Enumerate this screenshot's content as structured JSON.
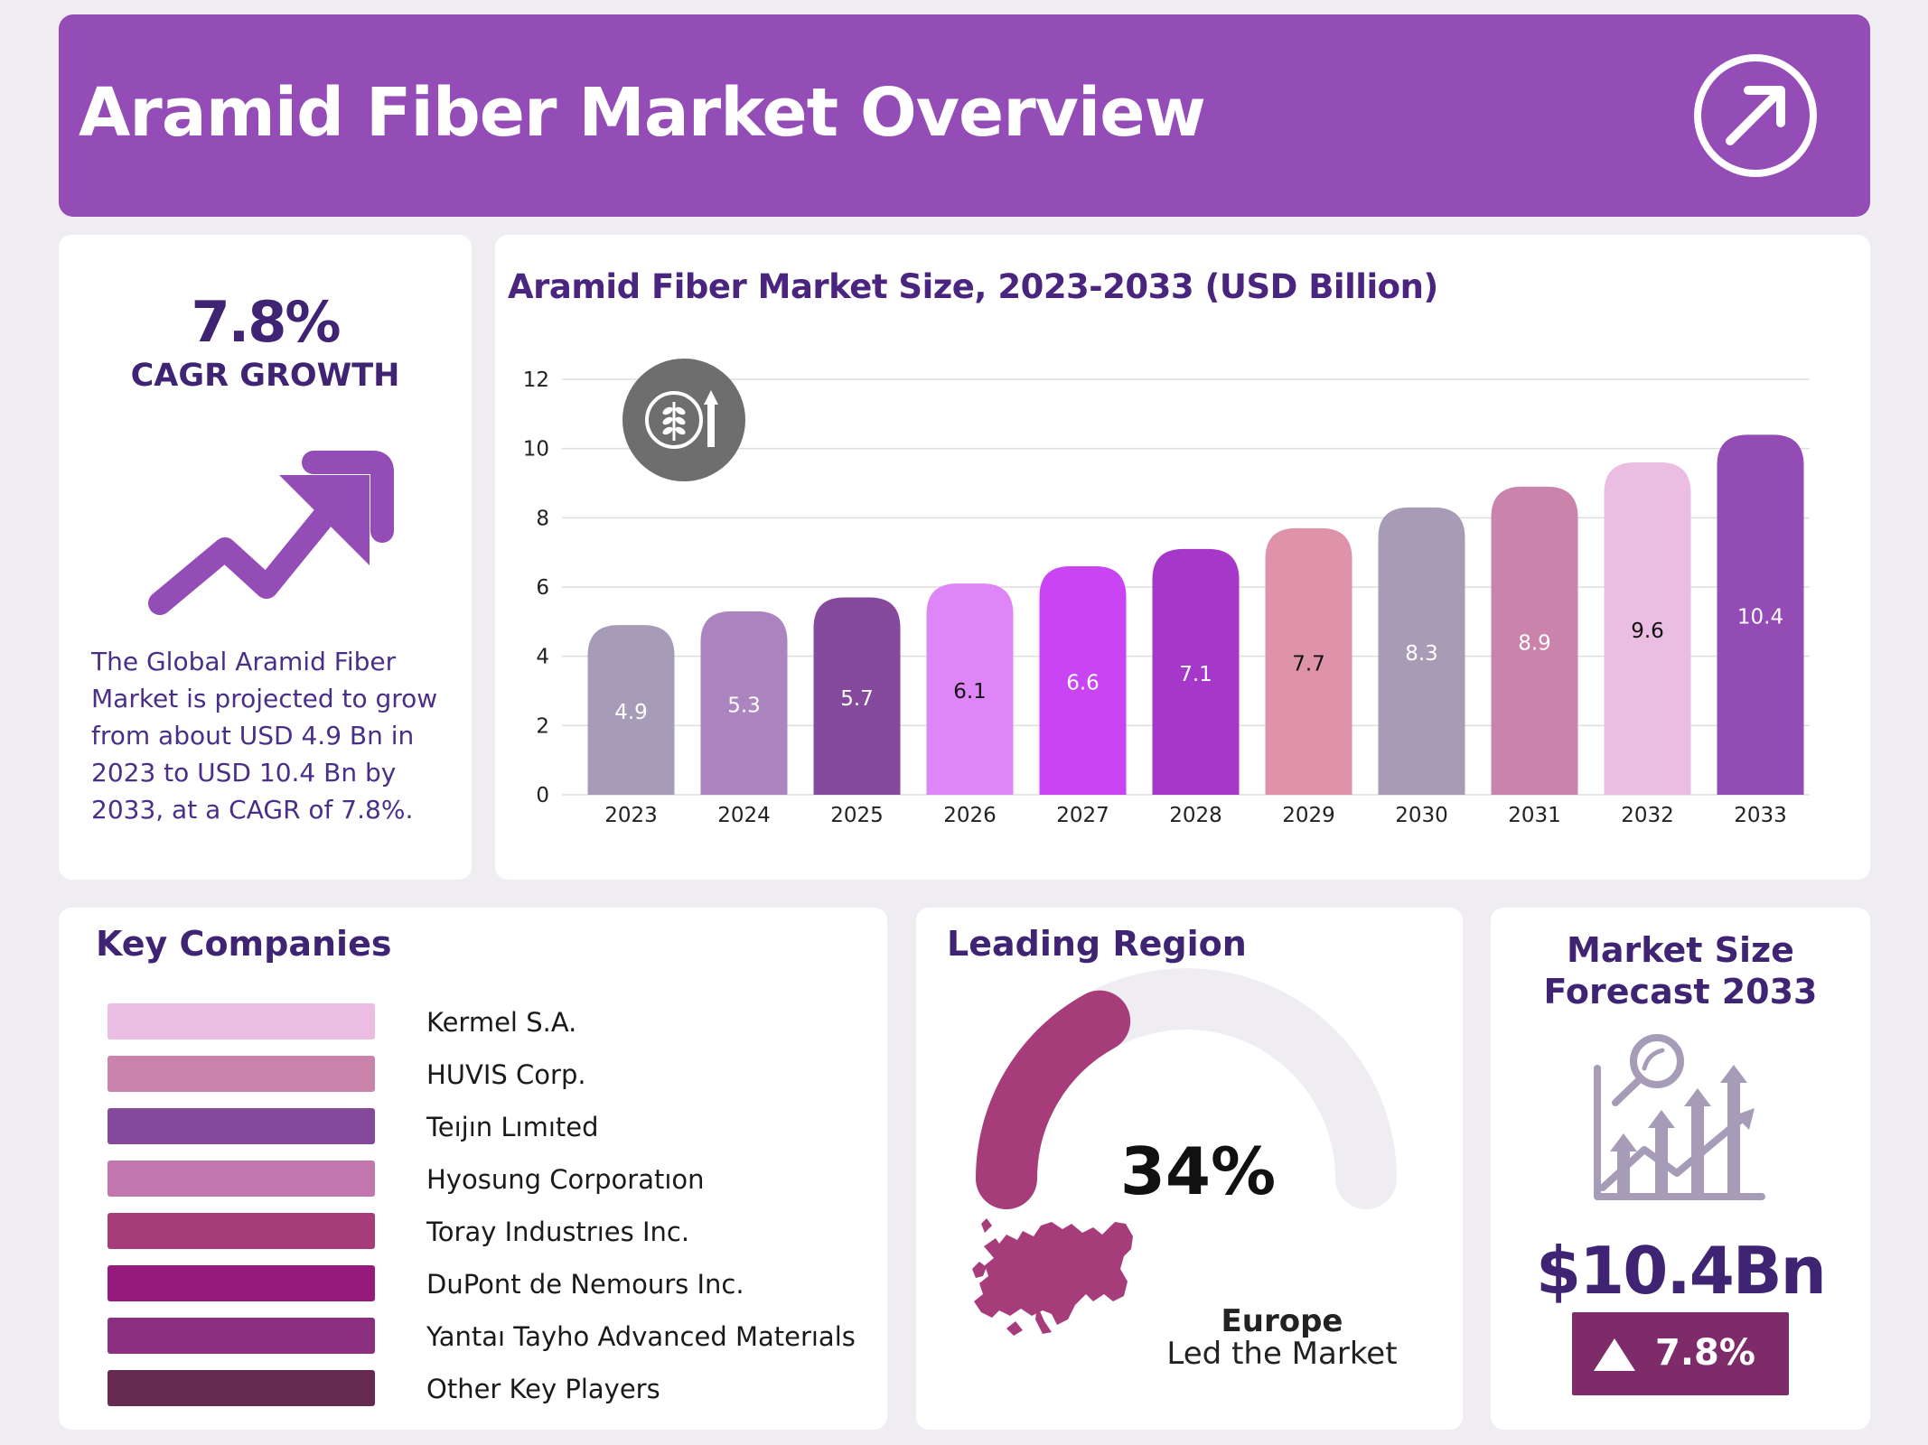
{
  "header": {
    "title": "Aramid Fiber Market Overview",
    "icon": "arrow-up-right-icon",
    "color": "#944cb7"
  },
  "cagr": {
    "value": "7.8%",
    "label": "CAGR GROWTH",
    "icon": "trend-up-arrow-icon",
    "description": "The Global Aramid Fiber Market is projected to grow from about USD 4.9 Bn in 2023 to USD 10.4 Bn by 2033, at a CAGR of 7.8%."
  },
  "chart_data": {
    "type": "bar",
    "title": "Aramid Fiber Market Size, 2023-2033 (USD Billion)",
    "xlabel": "",
    "ylabel": "",
    "categories": [
      "2023",
      "2024",
      "2025",
      "2026",
      "2027",
      "2028",
      "2029",
      "2030",
      "2031",
      "2032",
      "2033"
    ],
    "values": [
      4.9,
      5.3,
      5.7,
      6.1,
      6.6,
      7.1,
      7.7,
      8.3,
      8.9,
      9.6,
      10.4
    ],
    "value_labels": [
      "4.9",
      "5.3",
      "5.7",
      "6.1",
      "6.6",
      "7.1",
      "7.7",
      "8.3",
      "8.9",
      "9.6",
      "10.4"
    ],
    "colors": [
      "#a69cb8",
      "#ac84c0",
      "#854a9c",
      "#de86f7",
      "#c944f2",
      "#a638c9",
      "#df93aa",
      "#a79bb6",
      "#ca83ab",
      "#ebbde3",
      "#934bb6"
    ],
    "label_colors": [
      "#ffffff",
      "#ffffff",
      "#ffffff",
      "#111111",
      "#ffffff",
      "#ffffff",
      "#111111",
      "#ffffff",
      "#ffffff",
      "#111111",
      "#ffffff"
    ],
    "ylim": [
      0,
      12
    ],
    "yticks": [
      "0",
      "2",
      "4",
      "6",
      "8",
      "10",
      "12"
    ],
    "grid": true,
    "legend": "none",
    "badge_icon": "wheat-growth-icon"
  },
  "companies": {
    "title": "Key Companies",
    "items": [
      {
        "name": "Kermel S.A.",
        "color": "#ebbde3"
      },
      {
        "name": "HUVIS Corp.",
        "color": "#ca83ab"
      },
      {
        "name": "Teıjın Lımıted",
        "color": "#854a9c"
      },
      {
        "name": "Hyosung Corporatıon",
        "color": "#c376ad"
      },
      {
        "name": "Toray Industrıes Inc.",
        "color": "#a63d7a"
      },
      {
        "name": "DuPont de Nemours Inc.",
        "color": "#951a7c"
      },
      {
        "name": "Yantaı Tayho Advanced Materıals",
        "color": "#8c2f80"
      },
      {
        "name": "Other Key Players",
        "color": "#662a50"
      }
    ]
  },
  "region": {
    "title": "Leading Region",
    "share": 34,
    "share_label": "34%",
    "name": "Europe",
    "subtitle": "Led the Market",
    "gauge_color": "#a63d7a",
    "track_color": "#efedf2",
    "map_icon": "europe-map-icon"
  },
  "forecast": {
    "title": "Market Size Forecast 2033",
    "value": "$10.4Bn",
    "badge": "7.8%",
    "badge_icon": "triangle-up-icon",
    "icon": "growth-analysis-chart-icon"
  }
}
